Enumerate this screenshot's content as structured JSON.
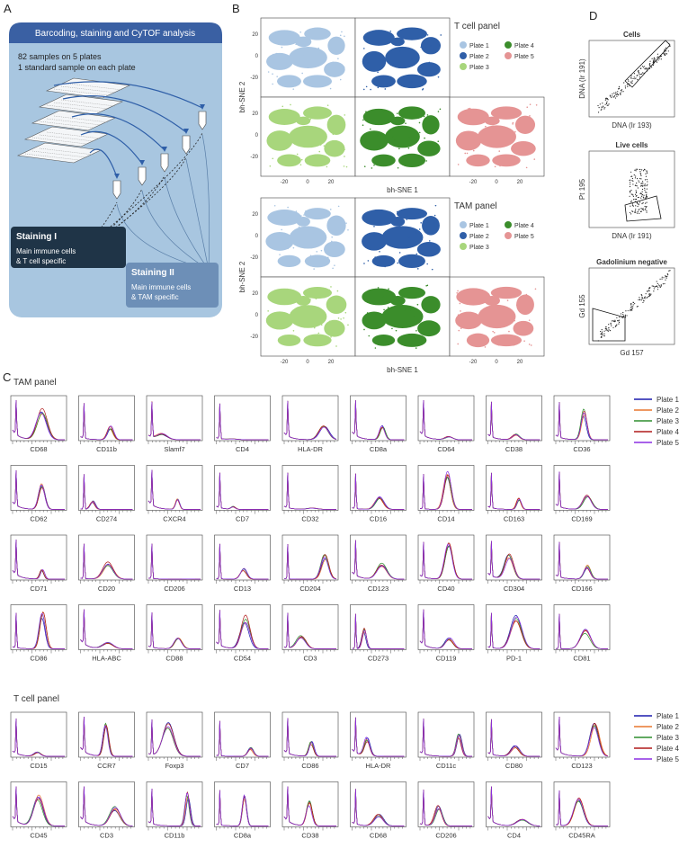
{
  "panel_labels": [
    "A",
    "B",
    "C",
    "D"
  ],
  "panel_a": {
    "title": "Barcoding, staining and CyTOF analysis",
    "lines": [
      "82 samples on 5 plates",
      "1 standard sample on each plate"
    ],
    "staining_1": {
      "title": "Staining I",
      "lines": [
        "Main immune cells",
        "& T cell specific"
      ]
    },
    "staining_2": {
      "title": "Staining II",
      "lines": [
        "Main immune cells",
        "& TAM specific"
      ]
    }
  },
  "panel_b": {
    "groups": [
      {
        "title": "T cell panel"
      },
      {
        "title": "TAM panel"
      }
    ],
    "legend": [
      {
        "name": "Plate 1",
        "color": "#a9c5e2"
      },
      {
        "name": "Plate 2",
        "color": "#2f5fa8"
      },
      {
        "name": "Plate 3",
        "color": "#a8d67c"
      },
      {
        "name": "Plate 4",
        "color": "#3b8d2b"
      },
      {
        "name": "Plate 5",
        "color": "#e59494"
      }
    ],
    "x_label": "bh-SNE 1",
    "y_label": "bh-SNE 2",
    "x_ticks": [
      -20,
      0,
      20
    ],
    "y_ticks": [
      20,
      0,
      -20
    ]
  },
  "panel_c": {
    "legend": [
      {
        "name": "Plate 1",
        "color": "#1c1cae"
      },
      {
        "name": "Plate 2",
        "color": "#e8762e"
      },
      {
        "name": "Plate 3",
        "color": "#2e8d2e"
      },
      {
        "name": "Plate 4",
        "color": "#b11a1a"
      },
      {
        "name": "Plate 5",
        "color": "#8b2fe3"
      }
    ],
    "groups": [
      {
        "title": "TAM panel",
        "markers": [
          "CD68",
          "CD11b",
          "Slamf7",
          "CD4",
          "HLA-DR",
          "CD8a",
          "CD64",
          "CD38",
          "CD36",
          "CD62",
          "CD274",
          "CXCR4",
          "CD7",
          "CD32",
          "CD16",
          "CD14",
          "CD163",
          "CD169",
          "CD71",
          "CD20",
          "CD206",
          "CD13",
          "CD204",
          "CD123",
          "CD40",
          "CD304",
          "CD166",
          "CD86",
          "HLA-ABC",
          "CD88",
          "CD54",
          "CD3",
          "CD273",
          "CD119",
          "PD-1",
          "CD81"
        ]
      },
      {
        "title": "T cell panel",
        "markers": [
          "CD15",
          "CCR7",
          "Foxp3",
          "CD7",
          "CD86",
          "HLA-DR",
          "CD11c",
          "CD80",
          "CD123",
          "CD45",
          "CD3",
          "CD11b",
          "CD8a",
          "CD38",
          "CD68",
          "CD206",
          "CD4",
          "CD45RA"
        ]
      }
    ]
  },
  "panel_d": {
    "plots": [
      {
        "title": "Cells",
        "x_label": "DNA (Ir 193)",
        "y_label": "DNA (Ir 191)"
      },
      {
        "title": "Live cells",
        "x_label": "DNA (Ir 191)",
        "y_label": "Pt 195"
      },
      {
        "title": "Gadolinium negative",
        "x_label": "Gd 157",
        "y_label": "Gd 155"
      }
    ]
  }
}
